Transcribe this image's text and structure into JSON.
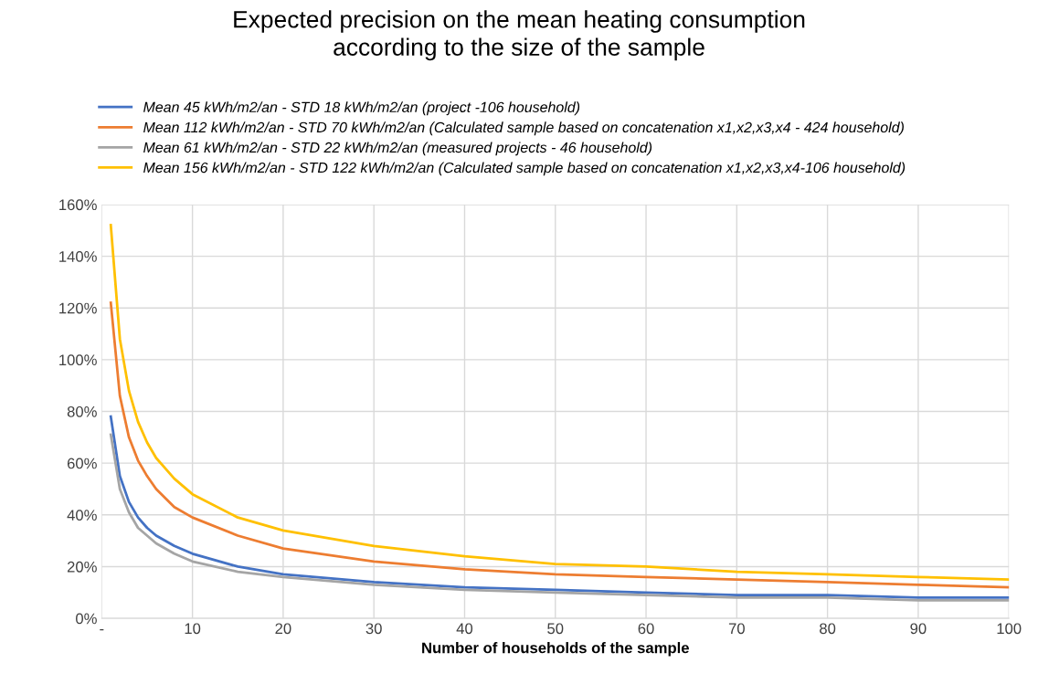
{
  "chart_data": {
    "type": "line",
    "title": "Expected precision on the mean heating consumption\naccording to the size of the sample",
    "xlabel": "Number of households of the sample",
    "x": [
      1,
      2,
      3,
      4,
      5,
      6,
      8,
      10,
      15,
      20,
      30,
      40,
      50,
      60,
      70,
      80,
      90,
      100
    ],
    "series": [
      {
        "name": "Mean 45 kWh/m2/an - STD 18 kWh/m2/an (project -106 household)",
        "color": "#4472c4",
        "values": [
          78,
          55,
          45,
          39,
          35,
          32,
          28,
          25,
          20,
          17,
          14,
          12,
          11,
          10,
          9,
          9,
          8,
          8
        ]
      },
      {
        "name": "Mean 112 kWh/m2/an - STD 70 kWh/m2/an (Calculated sample based on concatenation x1,x2,x3,x4 - 424 household)",
        "color": "#ed7d31",
        "values": [
          122,
          86,
          70,
          61,
          55,
          50,
          43,
          39,
          32,
          27,
          22,
          19,
          17,
          16,
          15,
          14,
          13,
          12
        ]
      },
      {
        "name": "Mean 61 kWh/m2/an - STD 22 kWh/m2/an (measured projects - 46 household)",
        "color": "#a5a5a5",
        "values": [
          71,
          50,
          41,
          35,
          32,
          29,
          25,
          22,
          18,
          16,
          13,
          11,
          10,
          9,
          8,
          8,
          7,
          7
        ]
      },
      {
        "name": "Mean 156 kWh/m2/an - STD 122 kWh/m2/an (Calculated sample based on concatenation x1,x2,x3,x4-106 household)",
        "color": "#ffc000",
        "values": [
          152,
          108,
          88,
          76,
          68,
          62,
          54,
          48,
          39,
          34,
          28,
          24,
          21,
          20,
          18,
          17,
          16,
          15
        ]
      }
    ],
    "xlim": [
      0,
      100
    ],
    "xticks": [
      {
        "value": 0,
        "label": "-"
      },
      10,
      20,
      30,
      40,
      50,
      60,
      70,
      80,
      90,
      100
    ],
    "ylim": [
      0,
      160
    ],
    "yticks": [
      {
        "value": 0,
        "label": "0%"
      },
      {
        "value": 20,
        "label": "20%"
      },
      {
        "value": 40,
        "label": "40%"
      },
      {
        "value": 60,
        "label": "60%"
      },
      {
        "value": 80,
        "label": "80%"
      },
      {
        "value": 100,
        "label": "100%"
      },
      {
        "value": 120,
        "label": "120%"
      },
      {
        "value": 140,
        "label": "140%"
      },
      {
        "value": 160,
        "label": "160%"
      }
    ],
    "grid": true,
    "legend": "top left",
    "marker": "none",
    "line_style": "solid"
  }
}
